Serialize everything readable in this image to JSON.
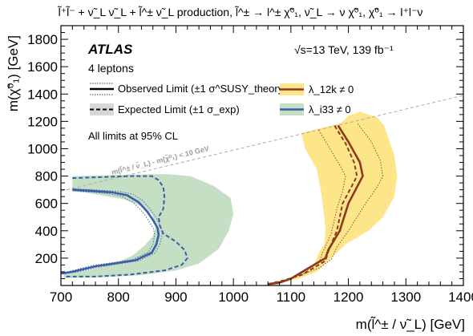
{
  "chart_data": {
    "type": "line",
    "title": "l̃⁺l̃⁻ + ν̃_L ν̃_L + l̃^± ν̃_L production,  l̃^± → l^± χ̃⁰₁,  ν̃_L → ν χ̃⁰₁,  χ̃⁰₁ → l⁺l⁻ν",
    "xlabel": "m(l̃^± / ν̃_L) [GeV]",
    "ylabel": "m(χ̃⁰₁) [GeV]",
    "xlim": [
      700,
      1400
    ],
    "ylim": [
      0,
      1900
    ],
    "xticks": [
      700,
      800,
      900,
      1000,
      1100,
      1200,
      1300,
      1400
    ],
    "yticks": [
      200,
      400,
      600,
      800,
      1000,
      1200,
      1400,
      1600,
      1800
    ],
    "xtick_labels": [
      "700",
      "800",
      "900",
      "1000",
      "1100",
      "1200",
      "1300",
      "1400"
    ],
    "ytick_labels": [
      "200",
      "400",
      "600",
      "800",
      "1000",
      "1200",
      "1400",
      "1600",
      "1800"
    ],
    "experiment": "ATLAS",
    "channel": "4 leptons",
    "energy": "√s=13 TeV, 139 fb⁻¹",
    "cl_note": "All limits at 95% CL",
    "kinematic_label": "m(l̃^± / ν̃_L) - m(χ̃⁰₁) < 10 GeV",
    "colors": {
      "lam12k_line": "#8b3a1e",
      "lam12k_band": "#fde68a",
      "lam133_line": "#3a5fa8",
      "lam133_band": "#c5dfc5",
      "diagonal": "#aaaaaa",
      "legend_band_neutral": "#d8d8d8"
    },
    "legend": [
      {
        "label": "Observed Limit (±1 σ^SUSY_theory)",
        "style": "observed"
      },
      {
        "label": "Expected Limit (±1 σ_exp)",
        "style": "expected"
      },
      {
        "label": "λ_12k ≠ 0",
        "style": "lam12k"
      },
      {
        "label": "λ_i33 ≠ 0",
        "style": "lam133"
      }
    ],
    "series": [
      {
        "name": "λ_12k ≠ 0",
        "observed": {
          "x": [
            1060,
            1080,
            1100,
            1120,
            1140,
            1160,
            1165,
            1185,
            1200,
            1215,
            1225,
            1220,
            1200,
            1182
          ],
          "y": [
            10,
            20,
            50,
            100,
            150,
            200,
            260,
            400,
            600,
            720,
            800,
            900,
            1050,
            1170
          ]
        },
        "observed_theory_up": {
          "x": [
            1060,
            1090,
            1120,
            1150,
            1170,
            1180,
            1200,
            1230,
            1250,
            1260,
            1255,
            1240,
            1215
          ],
          "y": [
            10,
            35,
            80,
            130,
            190,
            280,
            400,
            600,
            720,
            800,
            920,
            1050,
            1190
          ]
        },
        "observed_theory_down": {
          "x": [
            1060,
            1075,
            1095,
            1115,
            1135,
            1150,
            1155,
            1170,
            1180,
            1190,
            1195,
            1185,
            1165,
            1148
          ],
          "y": [
            10,
            20,
            40,
            80,
            130,
            180,
            240,
            380,
            560,
            690,
            800,
            880,
            1020,
            1140
          ]
        },
        "expected": {
          "x": [
            1060,
            1090,
            1120,
            1140,
            1160,
            1165,
            1180,
            1190,
            1205,
            1215,
            1210,
            1195,
            1175
          ],
          "y": [
            10,
            40,
            80,
            130,
            180,
            250,
            400,
            600,
            720,
            800,
            900,
            1040,
            1175
          ]
        },
        "expected_band_outer": {
          "x": [
            1045,
            1075,
            1110,
            1145,
            1170,
            1195,
            1235,
            1260,
            1280,
            1285,
            1280,
            1268,
            1262,
            1250,
            1220,
            1200,
            1188
          ],
          "y": [
            10,
            20,
            45,
            100,
            200,
            300,
            400,
            500,
            650,
            800,
            950,
            1100,
            1170,
            1230,
            1270,
            1240,
            1190
          ]
        },
        "expected_band_inner": {
          "x": [
            1118,
            1125,
            1145,
            1152,
            1155,
            1158,
            1160,
            1158,
            1150,
            1145,
            1140,
            1120,
            1095,
            1060
          ],
          "y": [
            1115,
            1000,
            850,
            700,
            600,
            500,
            400,
            300,
            250,
            200,
            150,
            100,
            50,
            15
          ]
        }
      },
      {
        "name": "λ_i33 ≠ 0",
        "observed": {
          "x": [
            720,
            760,
            790,
            815,
            835,
            850,
            860,
            868,
            870,
            866,
            858,
            830,
            760,
            720,
            705,
            700
          ],
          "y": [
            700,
            690,
            680,
            660,
            610,
            540,
            480,
            420,
            370,
            300,
            240,
            185,
            140,
            100,
            90,
            90
          ]
        },
        "observed_theory_up": {
          "x": [
            720,
            765,
            800,
            825,
            843,
            857,
            867,
            874,
            876,
            872,
            864,
            836,
            768,
            725,
            702
          ],
          "y": [
            708,
            698,
            688,
            668,
            618,
            548,
            488,
            426,
            372,
            300,
            238,
            182,
            136,
            96,
            88
          ]
        },
        "observed_theory_down": {
          "x": [
            720,
            755,
            782,
            806,
            827,
            843,
            853,
            861,
            863,
            860,
            852,
            824,
            752,
            715,
            702
          ],
          "y": [
            692,
            682,
            672,
            652,
            602,
            532,
            472,
            414,
            368,
            300,
            242,
            188,
            144,
            104,
            94
          ]
        },
        "expected": {
          "x": [
            720,
            820,
            858,
            870,
            878,
            880,
            878,
            870,
            872,
            878,
            900,
            915,
            920,
            910,
            880,
            820,
            760,
            720,
            705
          ],
          "y": [
            785,
            800,
            800,
            770,
            720,
            650,
            560,
            500,
            440,
            380,
            320,
            260,
            200,
            150,
            110,
            80,
            65,
            65,
            65
          ]
        },
        "expected_band_outer": {
          "x": [
            720,
            810,
            880,
            925,
            965,
            995,
            1000,
            992,
            975,
            940,
            900,
            840,
            770,
            720,
            705,
            705
          ],
          "y": [
            800,
            810,
            815,
            800,
            730,
            640,
            520,
            400,
            270,
            160,
            110,
            75,
            60,
            55,
            55,
            800
          ]
        },
        "expected_band_inner": {
          "x": [
            705,
            745,
            790,
            825,
            845,
            860,
            866,
            858,
            840,
            810,
            770,
            740,
            720
          ],
          "y": [
            90,
            110,
            155,
            220,
            290,
            360,
            440,
            520,
            580,
            630,
            660,
            680,
            690
          ]
        }
      }
    ],
    "diagonal": {
      "x": [
        700,
        1400
      ],
      "y": [
        690,
        1390
      ]
    }
  }
}
